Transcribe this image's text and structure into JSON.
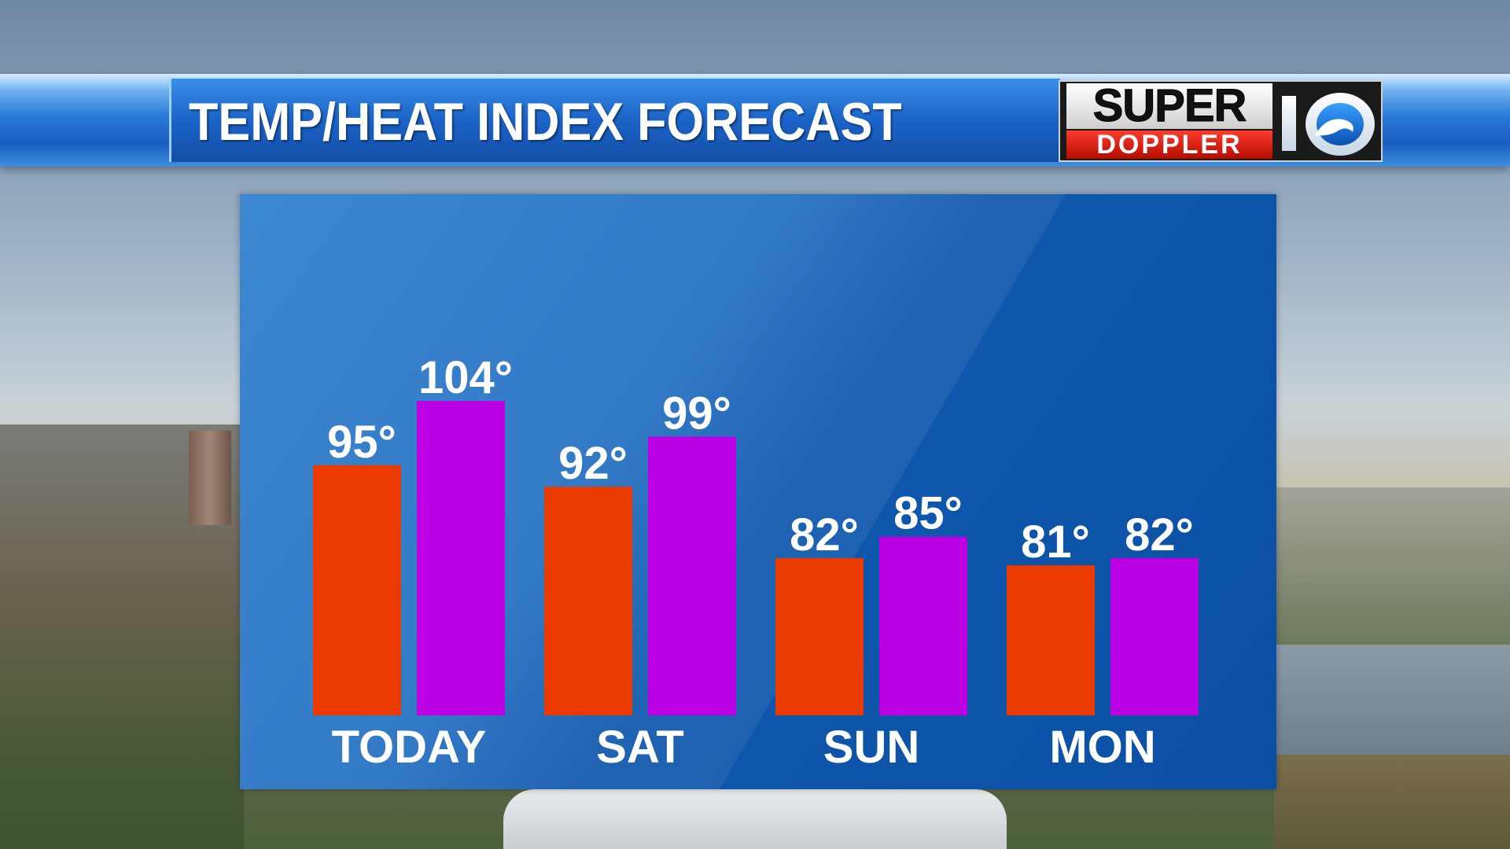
{
  "header": {
    "title": "TEMP/HEAT INDEX FORECAST"
  },
  "logo": {
    "line1": "SUPER",
    "line2": "DOPPLER",
    "channel": "10"
  },
  "colors": {
    "temperature": "#ea3a00",
    "heat_index": "#bb00e6",
    "panel": "#1a64b8"
  },
  "chart_data": {
    "type": "bar",
    "title": "TEMP/HEAT INDEX FORECAST",
    "categories": [
      "TODAY",
      "SAT",
      "SUN",
      "MON"
    ],
    "series": [
      {
        "values": [
          95,
          92,
          82,
          81
        ],
        "labels": [
          "95°",
          "92°",
          "82°",
          "81°"
        ],
        "color": "#ea3a00"
      },
      {
        "values": [
          104,
          99,
          85,
          82
        ],
        "labels": [
          "104°",
          "99°",
          "85°",
          "82°"
        ],
        "color": "#bb00e6"
      }
    ],
    "xlabel": "",
    "ylabel": "",
    "grid": false,
    "legend": "none"
  }
}
